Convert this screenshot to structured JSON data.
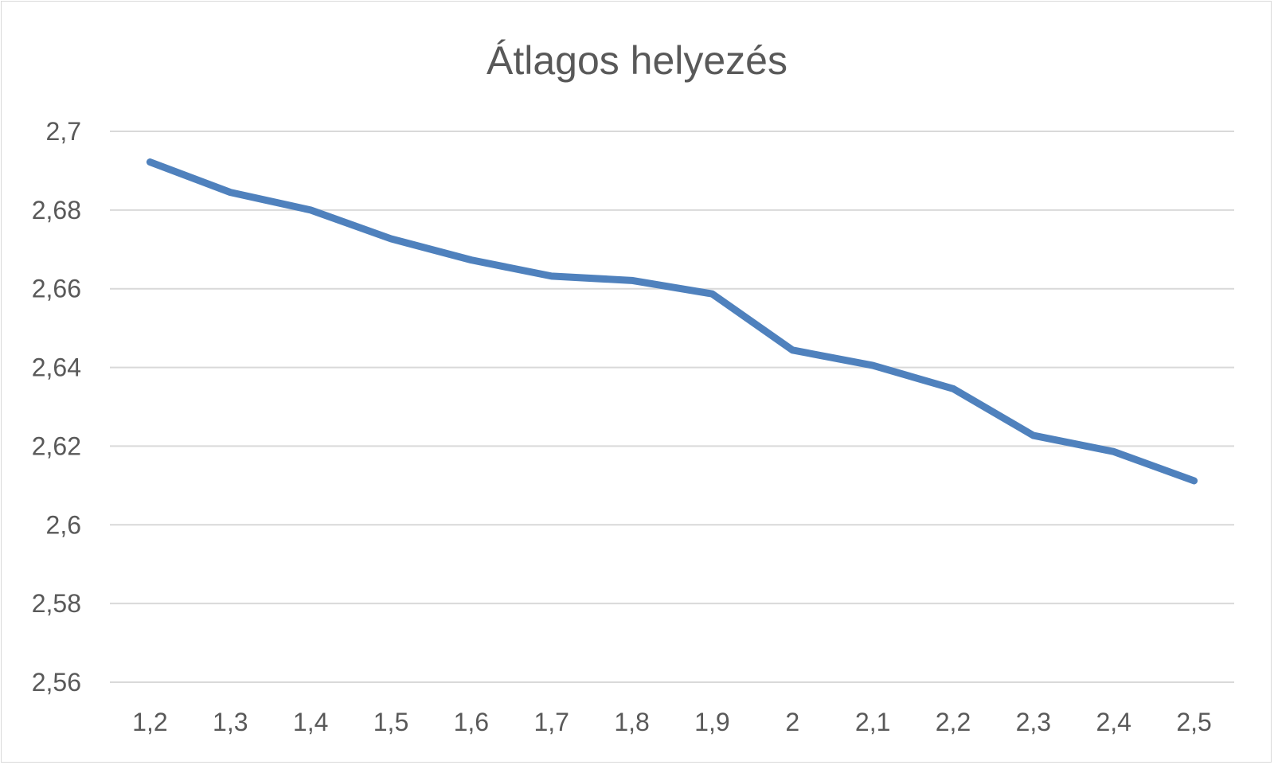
{
  "chart_data": {
    "type": "line",
    "title": "Átlagos helyezés",
    "xlabel": "",
    "ylabel": "",
    "categories": [
      "1,2",
      "1,3",
      "1,4",
      "1,5",
      "1,6",
      "1,7",
      "1,8",
      "1,9",
      "2",
      "2,1",
      "2,2",
      "2,3",
      "2,4",
      "2,5"
    ],
    "series": [
      {
        "values": [
          2.6922,
          2.6845,
          2.68,
          2.6727,
          2.6673,
          2.6632,
          2.6621,
          2.6587,
          2.6444,
          2.6405,
          2.6346,
          2.6227,
          2.6186,
          2.6112
        ],
        "color": "#4f81bd"
      }
    ],
    "ylim": [
      2.56,
      2.7
    ],
    "yticks": [
      "2,7",
      "2,68",
      "2,66",
      "2,64",
      "2,62",
      "2,6",
      "2,58",
      "2,56"
    ],
    "ytick_values": [
      2.7,
      2.68,
      2.66,
      2.64,
      2.62,
      2.6,
      2.58,
      2.56
    ],
    "grid": true,
    "legend": "none"
  }
}
